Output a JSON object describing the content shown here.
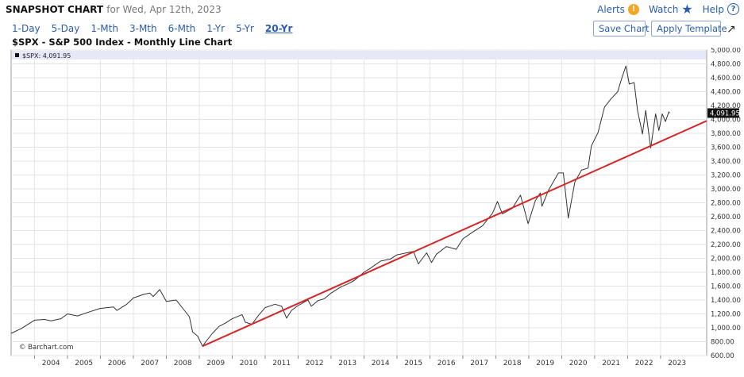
{
  "header": {
    "title": "SNAPSHOT CHART",
    "date_text": "for Wed, Apr 12th, 2023",
    "alerts_label": "Alerts",
    "watch_label": "Watch",
    "help_label": "Help"
  },
  "periods": [
    "1-Day",
    "5-Day",
    "1-Mth",
    "3-Mth",
    "6-Mth",
    "1-Yr",
    "5-Yr",
    "20-Yr"
  ],
  "active_period": "20-Yr",
  "buttons": {
    "save_chart": "Save Chart",
    "apply_template": "Apply Template"
  },
  "chart_title": "$SPX - S&P 500 Index - Monthly Line Chart",
  "legend_text": "$SPX: 4,091.95",
  "watermark": "© Barchart.com",
  "colors": {
    "accent": "#2a5db0",
    "price_line": "#333333",
    "trend_line": "#d62728",
    "legend_bg": "#e6e8f8"
  },
  "chart_data": {
    "type": "line",
    "title": "$SPX - S&P 500 Index - Monthly Line Chart",
    "ylim": [
      600,
      5000
    ],
    "yticks": [
      "600.00",
      "800.00",
      "1,000.00",
      "1,200.00",
      "1,400.00",
      "1,600.00",
      "1,800.00",
      "2,000.00",
      "2,200.00",
      "2,400.00",
      "2,600.00",
      "2,800.00",
      "3,000.00",
      "3,200.00",
      "3,400.00",
      "3,600.00",
      "3,800.00",
      "4,000.00",
      "4,200.00",
      "4,400.00",
      "4,600.00",
      "4,800.00",
      "5,000.00"
    ],
    "xticks": [
      "2004",
      "2005",
      "2006",
      "2007",
      "2008",
      "2009",
      "2010",
      "2011",
      "2012",
      "2013",
      "2014",
      "2015",
      "2016",
      "2017",
      "2018",
      "2019",
      "2020",
      "2021",
      "2022",
      "2023"
    ],
    "last_value": "4,091.95",
    "series": [
      {
        "values": [
          [
            2003.29,
            920
          ],
          [
            2003.6,
            990
          ],
          [
            2004.0,
            1110
          ],
          [
            2004.3,
            1120
          ],
          [
            2004.5,
            1100
          ],
          [
            2004.8,
            1130
          ],
          [
            2005.0,
            1200
          ],
          [
            2005.3,
            1170
          ],
          [
            2005.6,
            1220
          ],
          [
            2006.0,
            1280
          ],
          [
            2006.4,
            1300
          ],
          [
            2006.5,
            1250
          ],
          [
            2006.8,
            1340
          ],
          [
            2007.0,
            1430
          ],
          [
            2007.3,
            1480
          ],
          [
            2007.5,
            1500
          ],
          [
            2007.6,
            1450
          ],
          [
            2007.8,
            1550
          ],
          [
            2008.0,
            1380
          ],
          [
            2008.3,
            1400
          ],
          [
            2008.5,
            1280
          ],
          [
            2008.7,
            1160
          ],
          [
            2008.8,
            940
          ],
          [
            2008.95,
            880
          ],
          [
            2009.1,
            735
          ],
          [
            2009.2,
            800
          ],
          [
            2009.4,
            920
          ],
          [
            2009.6,
            1020
          ],
          [
            2009.8,
            1070
          ],
          [
            2010.0,
            1130
          ],
          [
            2010.3,
            1190
          ],
          [
            2010.4,
            1080
          ],
          [
            2010.6,
            1050
          ],
          [
            2010.8,
            1180
          ],
          [
            2011.0,
            1290
          ],
          [
            2011.3,
            1340
          ],
          [
            2011.5,
            1310
          ],
          [
            2011.65,
            1140
          ],
          [
            2011.8,
            1250
          ],
          [
            2012.0,
            1320
          ],
          [
            2012.3,
            1400
          ],
          [
            2012.4,
            1310
          ],
          [
            2012.6,
            1390
          ],
          [
            2012.8,
            1420
          ],
          [
            2013.0,
            1500
          ],
          [
            2013.3,
            1590
          ],
          [
            2013.5,
            1630
          ],
          [
            2013.7,
            1680
          ],
          [
            2014.0,
            1800
          ],
          [
            2014.2,
            1860
          ],
          [
            2014.5,
            1960
          ],
          [
            2014.8,
            1990
          ],
          [
            2015.0,
            2050
          ],
          [
            2015.3,
            2080
          ],
          [
            2015.5,
            2100
          ],
          [
            2015.65,
            1920
          ],
          [
            2015.9,
            2080
          ],
          [
            2016.05,
            1940
          ],
          [
            2016.2,
            2060
          ],
          [
            2016.5,
            2170
          ],
          [
            2016.8,
            2130
          ],
          [
            2017.0,
            2280
          ],
          [
            2017.3,
            2380
          ],
          [
            2017.6,
            2470
          ],
          [
            2017.9,
            2650
          ],
          [
            2018.05,
            2820
          ],
          [
            2018.2,
            2640
          ],
          [
            2018.5,
            2720
          ],
          [
            2018.75,
            2910
          ],
          [
            2018.98,
            2500
          ],
          [
            2019.2,
            2830
          ],
          [
            2019.35,
            2940
          ],
          [
            2019.4,
            2750
          ],
          [
            2019.6,
            2980
          ],
          [
            2019.9,
            3230
          ],
          [
            2020.05,
            3230
          ],
          [
            2020.2,
            2580
          ],
          [
            2020.4,
            3100
          ],
          [
            2020.6,
            3270
          ],
          [
            2020.8,
            3300
          ],
          [
            2020.9,
            3620
          ],
          [
            2021.1,
            3810
          ],
          [
            2021.3,
            4180
          ],
          [
            2021.5,
            4300
          ],
          [
            2021.7,
            4400
          ],
          [
            2021.8,
            4560
          ],
          [
            2021.95,
            4770
          ],
          [
            2022.05,
            4510
          ],
          [
            2022.2,
            4530
          ],
          [
            2022.3,
            4130
          ],
          [
            2022.45,
            3790
          ],
          [
            2022.55,
            4130
          ],
          [
            2022.7,
            3590
          ],
          [
            2022.85,
            4080
          ],
          [
            2022.95,
            3840
          ],
          [
            2023.05,
            4080
          ],
          [
            2023.15,
            3970
          ],
          [
            2023.25,
            4110
          ],
          [
            2023.28,
            4092
          ]
        ]
      }
    ],
    "annotation": {
      "type": "trendline",
      "x": [
        2009.1,
        2024.4
      ],
      "y": [
        735,
        3980
      ]
    }
  }
}
